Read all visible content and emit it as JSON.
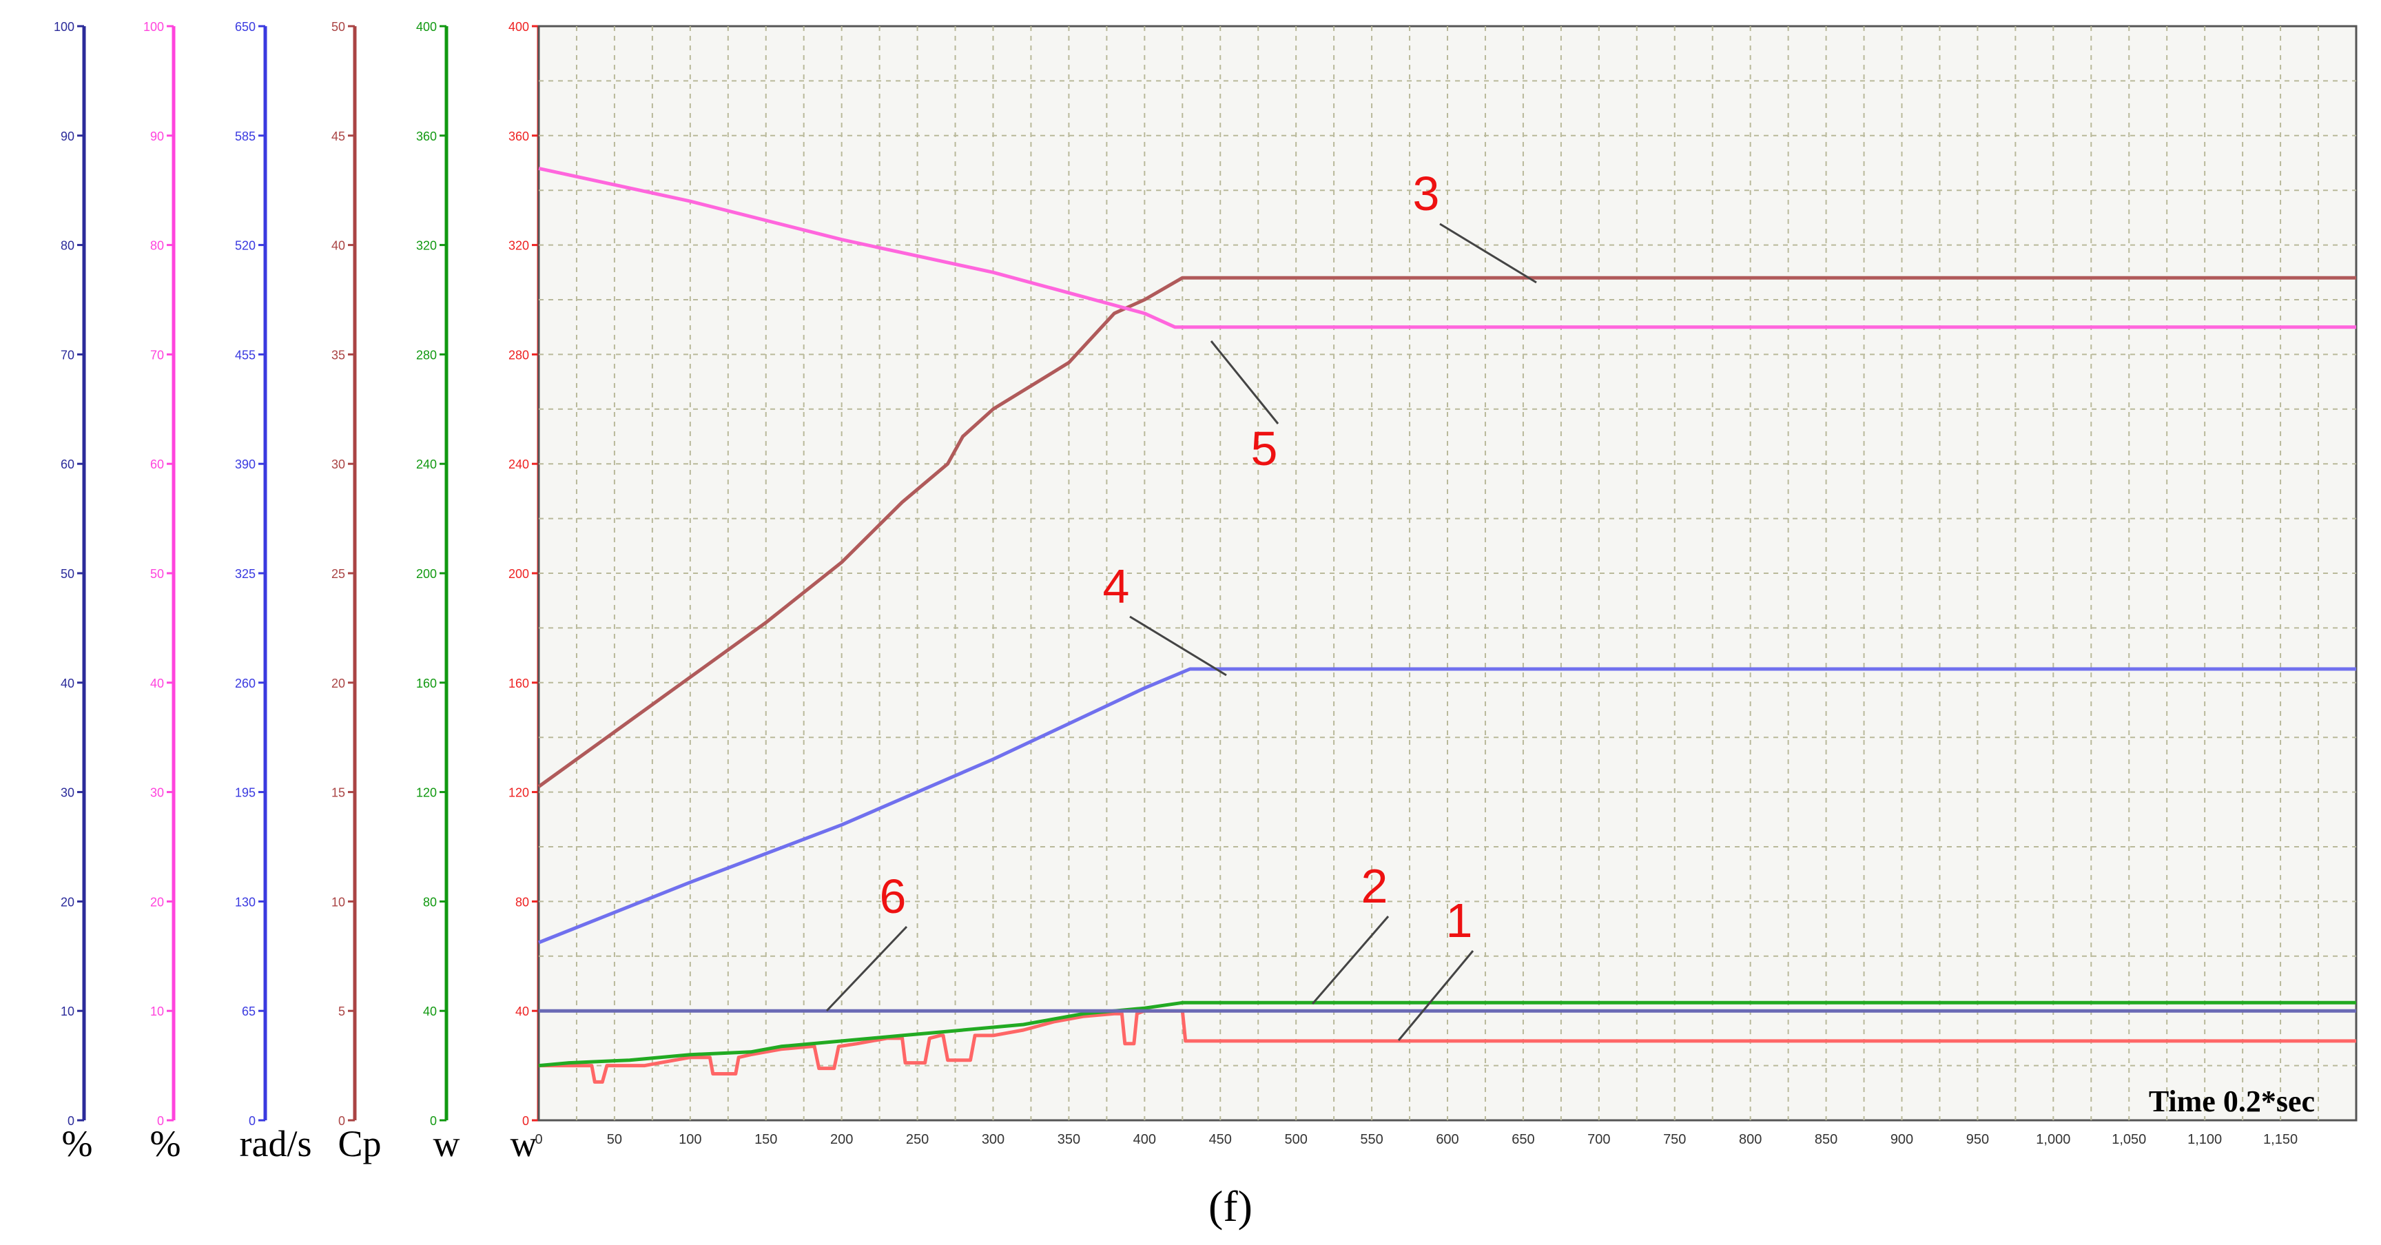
{
  "chart_data": {
    "type": "line",
    "xlabel": "Time  0.2*sec",
    "x_ticks": [
      "0",
      "50",
      "100",
      "150",
      "200",
      "250",
      "300",
      "350",
      "400",
      "450",
      "500",
      "550",
      "600",
      "650",
      "700",
      "750",
      "800",
      "850",
      "900",
      "950",
      "1,000",
      "1,050",
      "1,100",
      "1,150"
    ],
    "xlim": [
      0,
      1200
    ],
    "grid": true,
    "caption": "(f)",
    "axes": [
      {
        "unit": "%",
        "color": "#2b2b9a",
        "range": [
          0,
          100
        ],
        "ticks": [
          "0",
          "10",
          "20",
          "30",
          "40",
          "50",
          "60",
          "70",
          "80",
          "90",
          "100"
        ]
      },
      {
        "unit": "%",
        "color": "#ff44dd",
        "range": [
          0,
          100
        ],
        "ticks": [
          "0",
          "10",
          "20",
          "30",
          "40",
          "50",
          "60",
          "70",
          "80",
          "90",
          "100"
        ]
      },
      {
        "unit": "rad/s",
        "color": "#3a3ae0",
        "range": [
          0,
          650
        ],
        "ticks": [
          "0",
          "65",
          "130",
          "195",
          "260",
          "325",
          "390",
          "455",
          "520",
          "585",
          "650"
        ]
      },
      {
        "unit": "Cp",
        "color": "#aa4444",
        "range": [
          0,
          50
        ],
        "ticks": [
          "0",
          "5",
          "10",
          "15",
          "20",
          "25",
          "30",
          "35",
          "40",
          "45",
          "50"
        ]
      },
      {
        "unit": "w",
        "color": "#119911",
        "range": [
          0,
          400
        ],
        "ticks": [
          "0",
          "40",
          "80",
          "120",
          "160",
          "200",
          "240",
          "280",
          "320",
          "360",
          "400"
        ]
      },
      {
        "unit": "w",
        "color": "#ee2222",
        "range": [
          0,
          400
        ],
        "ticks": [
          "0",
          "40",
          "80",
          "120",
          "160",
          "200",
          "240",
          "280",
          "320",
          "360",
          "400"
        ]
      }
    ],
    "series": [
      {
        "label": "1",
        "color": "#ff6666",
        "y_axis": "main",
        "x": [
          0,
          20,
          30,
          35,
          37,
          42,
          45,
          60,
          70,
          80,
          100,
          113,
          115,
          118,
          130,
          132,
          140,
          160,
          180,
          182,
          185,
          195,
          198,
          210,
          230,
          240,
          242,
          245,
          255,
          258,
          265,
          267,
          270,
          285,
          288,
          300,
          320,
          340,
          360,
          380,
          385,
          387,
          393,
          395,
          400,
          420,
          425,
          427,
          1200
        ],
        "y": [
          20,
          20,
          20,
          20,
          14,
          14,
          20,
          20,
          20,
          21,
          23,
          23,
          17,
          17,
          17,
          23,
          24,
          26,
          27,
          27,
          19,
          19,
          27,
          28,
          30,
          30,
          21,
          21,
          21,
          30,
          31,
          31,
          22,
          22,
          31,
          31,
          33,
          36,
          38,
          39,
          39,
          28,
          28,
          39,
          40,
          40,
          40,
          29,
          29
        ]
      },
      {
        "label": "2",
        "color": "#22aa22",
        "y_axis": "main",
        "x": [
          0,
          20,
          60,
          100,
          140,
          160,
          200,
          240,
          260,
          300,
          320,
          340,
          360,
          380,
          400,
          425,
          1200
        ],
        "y": [
          20,
          21,
          22,
          24,
          25,
          27,
          29,
          31,
          32,
          34,
          35,
          37,
          39,
          40,
          41,
          43,
          43
        ]
      },
      {
        "label": "3",
        "color": "#b05a5a",
        "y_axis": "main",
        "x": [
          0,
          50,
          100,
          150,
          200,
          240,
          270,
          280,
          300,
          350,
          380,
          400,
          425,
          1200
        ],
        "y": [
          122,
          142,
          162,
          182,
          204,
          226,
          240,
          250,
          260,
          277,
          295,
          300,
          308,
          308
        ]
      },
      {
        "label": "4",
        "color": "#7070ee",
        "y_axis": "main",
        "x": [
          0,
          100,
          200,
          300,
          400,
          430,
          1200
        ],
        "y": [
          65,
          87,
          108,
          132,
          158,
          165,
          165
        ]
      },
      {
        "label": "5",
        "color": "#ff66dd",
        "y_axis": "main",
        "x": [
          0,
          100,
          200,
          300,
          400,
          420,
          1200
        ],
        "y": [
          348,
          336,
          322,
          310,
          295,
          290,
          290
        ]
      },
      {
        "label": "6",
        "color": "#6a6ab5",
        "y_axis": "main",
        "x": [
          0,
          1200
        ],
        "y": [
          40,
          40
        ]
      }
    ],
    "annotations": [
      "1",
      "2",
      "3",
      "4",
      "5",
      "6"
    ]
  }
}
